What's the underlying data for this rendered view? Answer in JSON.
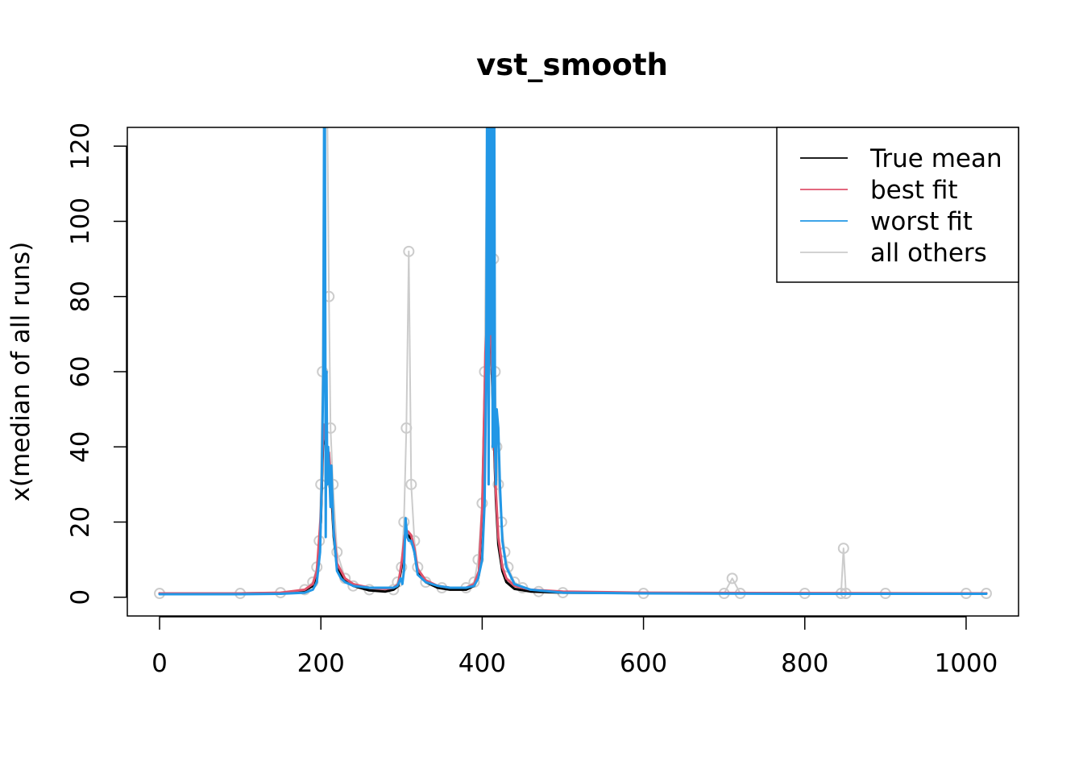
{
  "chart_data": {
    "type": "line",
    "title": "vst_smooth",
    "xlabel": "",
    "ylabel": "x(median of all runs)",
    "xlim": [
      -40,
      1065
    ],
    "ylim": [
      -5,
      125
    ],
    "x_ticks": [
      0,
      200,
      400,
      600,
      800,
      1000
    ],
    "y_ticks": [
      0,
      20,
      40,
      60,
      80,
      100,
      120
    ],
    "legend": {
      "position": "top-right",
      "entries": [
        {
          "label": "True mean",
          "color": "#000000"
        },
        {
          "label": "best fit",
          "color": "#DF536B"
        },
        {
          "label": "worst fit",
          "color": "#2297E6"
        },
        {
          "label": "all others",
          "color": "#CCCCCC"
        }
      ]
    },
    "series": [
      {
        "name": "all others",
        "color": "#CCCCCC",
        "x": [
          0,
          100,
          150,
          180,
          190,
          195,
          198,
          200,
          202,
          204,
          206,
          208,
          210,
          212,
          215,
          220,
          230,
          240,
          260,
          290,
          295,
          300,
          303,
          306,
          309,
          312,
          316,
          320,
          330,
          350,
          380,
          390,
          395,
          400,
          403,
          406,
          408,
          410,
          412,
          414,
          416,
          418,
          420,
          424,
          428,
          432,
          440,
          450,
          470,
          500,
          600,
          700,
          710,
          720,
          800,
          845,
          848,
          851,
          900,
          1000,
          1025
        ],
        "values": [
          1,
          1,
          1.2,
          2,
          4,
          8,
          15,
          30,
          60,
          128,
          128,
          128,
          80,
          45,
          30,
          12,
          5,
          3,
          2,
          2,
          4,
          8,
          20,
          45,
          92,
          30,
          15,
          8,
          4,
          2.5,
          2.5,
          4,
          10,
          25,
          60,
          128,
          128,
          128,
          128,
          90,
          60,
          40,
          30,
          20,
          12,
          8,
          4,
          2.5,
          1.5,
          1.2,
          1,
          1,
          5,
          1,
          1,
          1,
          13,
          1,
          1,
          1,
          1
        ]
      },
      {
        "name": "True mean",
        "color": "#000000",
        "x": [
          0,
          100,
          150,
          180,
          190,
          195,
          200,
          203,
          205,
          207,
          210,
          213,
          216,
          220,
          230,
          240,
          260,
          280,
          290,
          296,
          300,
          304,
          308,
          312,
          316,
          320,
          330,
          345,
          360,
          380,
          390,
          396,
          400,
          404,
          407,
          410,
          412,
          414,
          417,
          420,
          425,
          430,
          440,
          460,
          500,
          600,
          800,
          1025
        ],
        "values": [
          1,
          1,
          1.1,
          1.8,
          3,
          6,
          20,
          44,
          42,
          38,
          37,
          28,
          16,
          8,
          4.5,
          3,
          1.8,
          1.5,
          2,
          3,
          8,
          16,
          16.5,
          15.5,
          12,
          7,
          4,
          2.5,
          2,
          2,
          3,
          6,
          22,
          62,
          76,
          72,
          60,
          46,
          26,
          14,
          7,
          4,
          2.2,
          1.5,
          1.2,
          1.1,
          1,
          1
        ]
      },
      {
        "name": "best fit",
        "color": "#DF536B",
        "x": [
          0,
          100,
          150,
          180,
          190,
          195,
          200,
          203,
          205,
          207,
          210,
          213,
          216,
          220,
          230,
          240,
          260,
          280,
          290,
          296,
          300,
          304,
          308,
          312,
          316,
          320,
          330,
          345,
          360,
          380,
          390,
          396,
          400,
          404,
          407,
          410,
          412,
          414,
          417,
          420,
          425,
          430,
          440,
          460,
          500,
          600,
          800,
          1025
        ],
        "values": [
          1,
          1,
          1.2,
          2,
          3.5,
          7,
          22,
          46,
          43,
          39,
          38.5,
          30,
          18,
          9,
          5,
          3.5,
          2.5,
          2.2,
          2.5,
          3.5,
          9,
          16.5,
          17.5,
          16.5,
          13,
          7.5,
          4.5,
          3,
          2.5,
          2.5,
          3.5,
          7,
          24,
          65,
          78,
          74,
          62,
          48,
          28,
          16,
          8,
          5,
          3,
          2,
          1.5,
          1.2,
          1.1,
          1
        ]
      },
      {
        "name": "worst fit",
        "color": "#2297E6",
        "x": [
          0,
          100,
          150,
          180,
          190,
          195,
          199,
          201,
          203,
          204,
          205,
          206,
          207,
          208,
          209,
          210,
          211,
          212,
          213,
          214,
          216,
          220,
          225,
          230,
          240,
          260,
          280,
          290,
          295,
          299,
          301,
          303,
          305,
          307,
          309,
          312,
          316,
          320,
          330,
          345,
          360,
          380,
          390,
          395,
          400,
          403,
          405,
          406,
          407,
          408,
          409,
          410,
          411,
          412,
          413,
          414,
          415,
          416,
          417,
          418,
          420,
          422,
          425,
          430,
          440,
          460,
          500,
          600,
          800,
          1025
        ],
        "values": [
          0.8,
          0.8,
          0.9,
          1.2,
          2,
          4,
          12,
          30,
          60,
          128,
          128,
          16,
          60,
          30,
          40,
          35,
          30,
          24,
          35,
          28,
          17,
          7,
          5,
          4,
          3,
          2.5,
          2.5,
          2.5,
          3,
          5,
          3.5,
          7,
          21,
          16,
          15,
          15,
          12,
          6,
          4,
          3,
          2.5,
          2.5,
          3,
          5,
          10,
          25,
          60,
          128,
          128,
          30,
          128,
          70,
          80,
          128,
          40,
          90,
          128,
          40,
          30,
          50,
          45,
          30,
          15,
          8,
          3.5,
          2,
          1.2,
          1,
          0.9,
          0.9
        ]
      }
    ]
  }
}
